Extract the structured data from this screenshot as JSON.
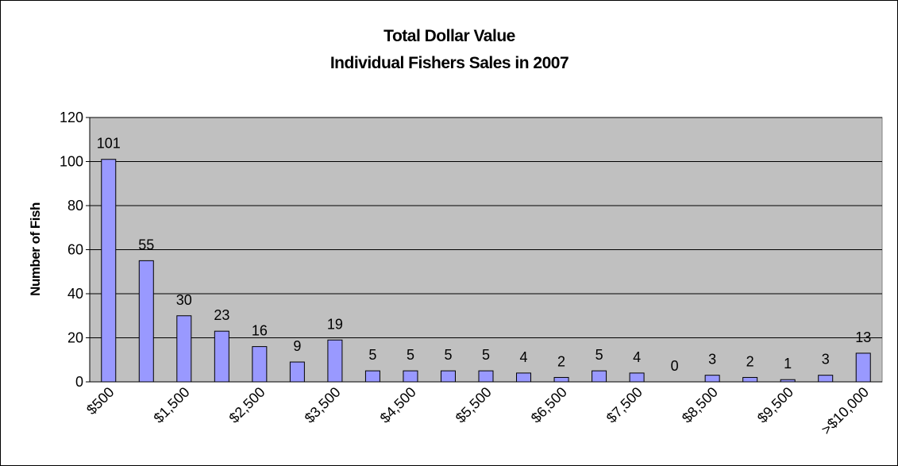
{
  "chart_data": {
    "type": "bar",
    "title": [
      "Total Dollar Value",
      "Individual Fishers Sales in 2007"
    ],
    "ylabel": "Number of Fish",
    "categories": [
      "$500",
      null,
      "$1,500",
      null,
      "$2,500",
      null,
      "$3,500",
      null,
      "$4,500",
      null,
      "$5,500",
      null,
      "$6,500",
      null,
      "$7,500",
      null,
      "$8,500",
      null,
      "$9,500",
      null,
      ">$10,000"
    ],
    "values": [
      101,
      55,
      30,
      23,
      16,
      9,
      19,
      5,
      5,
      5,
      5,
      4,
      2,
      5,
      4,
      0,
      3,
      2,
      1,
      3,
      13
    ],
    "color": "#9999ff",
    "ylim": [
      0,
      120
    ],
    "yticks": [
      0,
      20,
      40,
      60,
      80,
      100,
      120
    ],
    "grid": true
  }
}
